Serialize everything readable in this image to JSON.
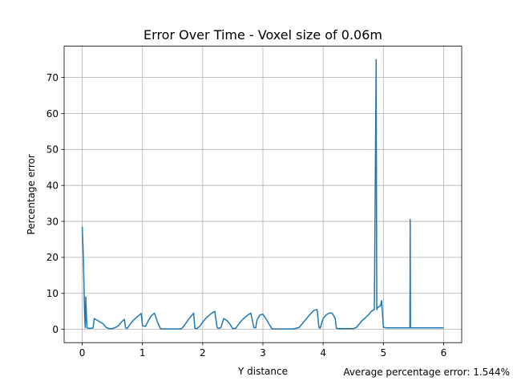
{
  "chart_data": {
    "type": "line",
    "title": "Error Over Time - Voxel size of 0.06m",
    "xlabel": "Y distance",
    "ylabel": "Percentage error",
    "annotation": "Average percentage error: 1.544%",
    "xlim": [
      -0.3,
      6.3
    ],
    "ylim": [
      -3.7,
      78.7
    ],
    "grid": true,
    "xticks": [
      0,
      1,
      2,
      3,
      4,
      5,
      6
    ],
    "yticks": [
      0,
      10,
      20,
      30,
      40,
      50,
      60,
      70
    ],
    "series": [
      {
        "color": "#1f77b4",
        "x": [
          0.0,
          0.02,
          0.04,
          0.05,
          0.06,
          0.07,
          0.08,
          0.1,
          0.12,
          0.15,
          0.18,
          0.2,
          0.25,
          0.3,
          0.35,
          0.4,
          0.45,
          0.5,
          0.55,
          0.6,
          0.65,
          0.7,
          0.72,
          0.75,
          0.8,
          0.85,
          0.9,
          0.95,
          0.98,
          1.0,
          1.05,
          1.1,
          1.15,
          1.2,
          1.25,
          1.3,
          1.35,
          1.4,
          1.5,
          1.6,
          1.65,
          1.7,
          1.75,
          1.8,
          1.85,
          1.87,
          1.9,
          1.95,
          2.0,
          2.05,
          2.1,
          2.15,
          2.2,
          2.24,
          2.26,
          2.3,
          2.35,
          2.4,
          2.45,
          2.5,
          2.55,
          2.6,
          2.65,
          2.7,
          2.75,
          2.8,
          2.85,
          2.88,
          2.9,
          2.95,
          3.0,
          3.05,
          3.1,
          3.15,
          3.2,
          3.25,
          3.3,
          3.4,
          3.5,
          3.6,
          3.65,
          3.7,
          3.75,
          3.8,
          3.85,
          3.9,
          3.93,
          3.95,
          4.0,
          4.05,
          4.1,
          4.15,
          4.2,
          4.22,
          4.25,
          4.3,
          4.4,
          4.5,
          4.55,
          4.6,
          4.65,
          4.7,
          4.75,
          4.8,
          4.85,
          4.88,
          4.885,
          4.89,
          4.9,
          4.95,
          4.97,
          5.0,
          5.05,
          5.1,
          5.2,
          5.3,
          5.4,
          5.44,
          5.445,
          5.45,
          5.5,
          5.6,
          5.8,
          6.0
        ],
        "values": [
          28.5,
          20.0,
          4.0,
          0.5,
          9.0,
          4.0,
          0.4,
          0.3,
          0.3,
          0.3,
          0.4,
          3.0,
          2.5,
          2.0,
          1.5,
          0.5,
          0.2,
          0.2,
          0.5,
          1.0,
          2.0,
          2.8,
          0.4,
          0.3,
          1.5,
          2.5,
          3.3,
          4.0,
          4.4,
          1.0,
          0.8,
          2.5,
          3.8,
          4.5,
          2.0,
          0.2,
          0.1,
          0.1,
          0.1,
          0.1,
          0.2,
          1.2,
          2.4,
          3.5,
          4.5,
          0.3,
          0.2,
          0.8,
          2.0,
          3.0,
          3.8,
          4.5,
          5.0,
          0.5,
          0.3,
          0.4,
          3.0,
          2.5,
          1.5,
          0.2,
          0.3,
          1.5,
          2.5,
          3.3,
          4.0,
          4.5,
          0.5,
          0.4,
          2.5,
          4.0,
          4.2,
          3.0,
          1.5,
          0.2,
          0.1,
          0.1,
          0.1,
          0.1,
          0.1,
          0.5,
          1.5,
          2.5,
          3.5,
          4.5,
          5.3,
          5.5,
          0.5,
          0.3,
          3.0,
          4.0,
          4.5,
          4.5,
          3.0,
          0.3,
          0.2,
          0.2,
          0.2,
          0.2,
          0.5,
          1.5,
          2.5,
          3.2,
          4.0,
          5.0,
          5.5,
          75.0,
          40.0,
          5.5,
          6.0,
          6.5,
          8.0,
          0.6,
          0.4,
          0.4,
          0.4,
          0.4,
          0.4,
          0.4,
          30.5,
          0.4,
          0.4,
          0.4,
          0.4,
          0.4
        ]
      }
    ]
  }
}
